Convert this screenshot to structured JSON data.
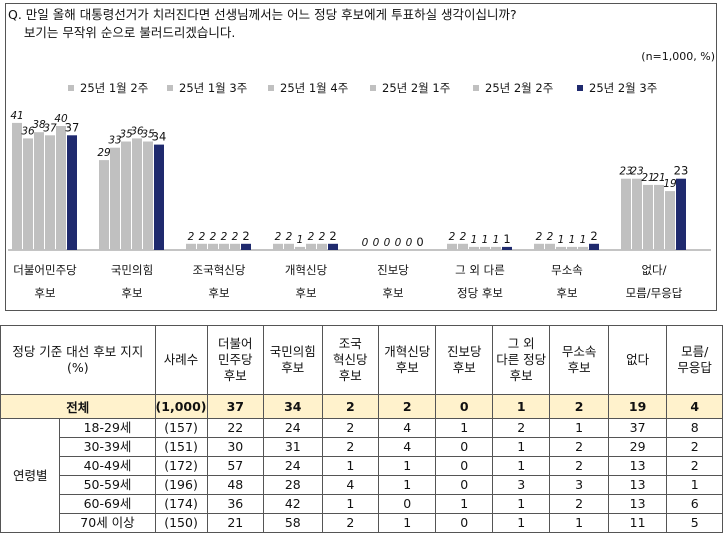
{
  "question": {
    "line1": "Q. 만일 올해 대통령선거가 치러진다면 선생님께서는 어느 정당 후보에게 투표하실 생각이십니까?",
    "line2": "    보기는 무작위 순으로 불러드리겠습니다."
  },
  "note": "(n=1,000,  %)",
  "colors": {
    "light": "#c0c0c0",
    "dark": "#1f2a6e",
    "header_bg": "#ffffff",
    "total_bg": "#fff2cc"
  },
  "chart_data": {
    "type": "bar",
    "categories": [
      [
        "더불어민주당",
        "후보"
      ],
      [
        "국민의힘",
        "후보"
      ],
      [
        "조국혁신당",
        "후보"
      ],
      [
        "개혁신당",
        "후보"
      ],
      [
        "진보당",
        "후보"
      ],
      [
        "그 외 다른",
        "정당 후보"
      ],
      [
        "무소속",
        "후보"
      ],
      [
        "없다/",
        "모름/무응답"
      ]
    ],
    "series": [
      {
        "name": "25년 1월 2주",
        "values": [
          41,
          29,
          2,
          2,
          0,
          2,
          2,
          23
        ]
      },
      {
        "name": "25년 1월 3주",
        "values": [
          36,
          33,
          2,
          2,
          0,
          2,
          2,
          23
        ]
      },
      {
        "name": "25년 1월 4주",
        "values": [
          38,
          35,
          2,
          1,
          0,
          1,
          1,
          21
        ]
      },
      {
        "name": "25년 2월 1주",
        "values": [
          37,
          36,
          2,
          2,
          0,
          1,
          1,
          21
        ]
      },
      {
        "name": "25년 2월 2주",
        "values": [
          40,
          35,
          2,
          2,
          0,
          1,
          1,
          19
        ]
      },
      {
        "name": "25년 2월 3주",
        "values": [
          37,
          34,
          2,
          2,
          0,
          1,
          2,
          23
        ]
      }
    ],
    "legend": "top"
  },
  "table": {
    "header": [
      "정당 기준 대선 후보 지지\n(%)",
      "사례수",
      "더불어\n민주당\n후보",
      "국민의힘\n후보",
      "조국\n혁신당\n후보",
      "개혁신당\n후보",
      "진보당\n후보",
      "그 외\n다른 정당\n후보",
      "무소속\n후보",
      "없다",
      "모름/\n무응답"
    ],
    "total": [
      "전체",
      "(1,000)",
      "37",
      "34",
      "2",
      "2",
      "0",
      "1",
      "2",
      "19",
      "4"
    ],
    "group_label": "연령별",
    "rows": [
      [
        "18-29세",
        "(157)",
        "22",
        "24",
        "2",
        "4",
        "1",
        "2",
        "1",
        "37",
        "8"
      ],
      [
        "30-39세",
        "(151)",
        "30",
        "31",
        "2",
        "4",
        "0",
        "1",
        "2",
        "29",
        "2"
      ],
      [
        "40-49세",
        "(172)",
        "57",
        "24",
        "1",
        "1",
        "0",
        "1",
        "2",
        "13",
        "2"
      ],
      [
        "50-59세",
        "(196)",
        "48",
        "28",
        "4",
        "1",
        "0",
        "3",
        "3",
        "13",
        "1"
      ],
      [
        "60-69세",
        "(174)",
        "36",
        "42",
        "1",
        "0",
        "1",
        "1",
        "2",
        "13",
        "6"
      ],
      [
        "70세 이상",
        "(150)",
        "21",
        "58",
        "2",
        "1",
        "0",
        "1",
        "1",
        "11",
        "5"
      ]
    ]
  }
}
